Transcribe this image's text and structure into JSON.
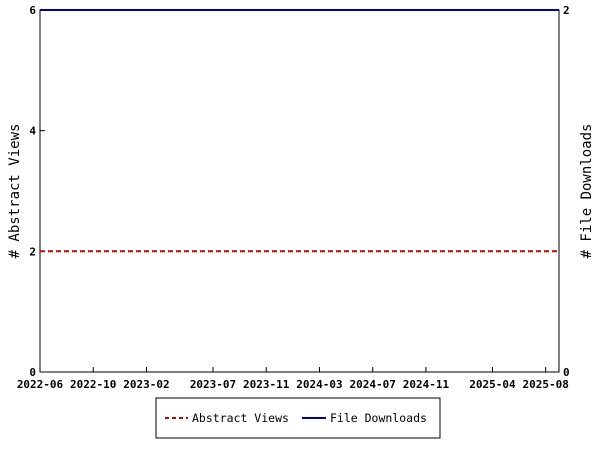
{
  "chart_data": {
    "type": "line",
    "title": "",
    "xlabel": "",
    "ylabel": "# Abstract Views",
    "y2label": "# File Downloads",
    "ylim": [
      0,
      6
    ],
    "y2lim": [
      0,
      2
    ],
    "yticks": [
      "0",
      "2",
      "4",
      "6"
    ],
    "y2ticks": [
      "0",
      "2"
    ],
    "xticks": [
      {
        "label": "2022-06",
        "pos": 0
      },
      {
        "label": "2022-10",
        "pos": 4
      },
      {
        "label": "2023-02",
        "pos": 8
      },
      {
        "label": "2023-07",
        "pos": 13
      },
      {
        "label": "2023-11",
        "pos": 17
      },
      {
        "label": "2024-03",
        "pos": 21
      },
      {
        "label": "2024-07",
        "pos": 25
      },
      {
        "label": "2024-11",
        "pos": 29
      },
      {
        "label": "2025-04",
        "pos": 34
      },
      {
        "label": "2025-08",
        "pos": 38
      }
    ],
    "x": [
      "2022-06",
      "2022-07",
      "2022-08",
      "2022-09",
      "2022-10",
      "2022-11",
      "2022-12",
      "2023-01",
      "2023-02",
      "2023-03",
      "2023-04",
      "2023-05",
      "2023-06",
      "2023-07",
      "2023-08",
      "2023-09",
      "2023-10",
      "2023-11",
      "2023-12",
      "2024-01",
      "2024-02",
      "2024-03",
      "2024-04",
      "2024-05",
      "2024-06",
      "2024-07",
      "2024-08",
      "2024-09",
      "2024-10",
      "2024-11",
      "2024-12",
      "2025-01",
      "2025-02",
      "2025-03",
      "2025-04",
      "2025-05",
      "2025-06",
      "2025-07",
      "2025-08",
      "2025-09"
    ],
    "series": [
      {
        "name": "Abstract Views",
        "axis": "left",
        "color": "#cc0000",
        "dash": true,
        "values": [
          2,
          2,
          2,
          2,
          2,
          2,
          2,
          2,
          2,
          2,
          2,
          2,
          2,
          2,
          2,
          2,
          2,
          2,
          2,
          2,
          2,
          2,
          2,
          2,
          2,
          2,
          2,
          2,
          2,
          2,
          2,
          2,
          2,
          2,
          2,
          2,
          2,
          2,
          2,
          2
        ]
      },
      {
        "name": "File Downloads",
        "axis": "right",
        "color": "#0000aa",
        "dash": false,
        "values": [
          2,
          2,
          2,
          2,
          2,
          2,
          2,
          2,
          2,
          2,
          2,
          2,
          2,
          2,
          2,
          2,
          2,
          2,
          2,
          2,
          2,
          2,
          2,
          2,
          2,
          2,
          2,
          2,
          2,
          2,
          2,
          2,
          2,
          2,
          2,
          2,
          2,
          2,
          2,
          2
        ]
      }
    ],
    "legend": [
      "Abstract Views",
      "File Downloads"
    ],
    "legend_position": "bottom"
  }
}
